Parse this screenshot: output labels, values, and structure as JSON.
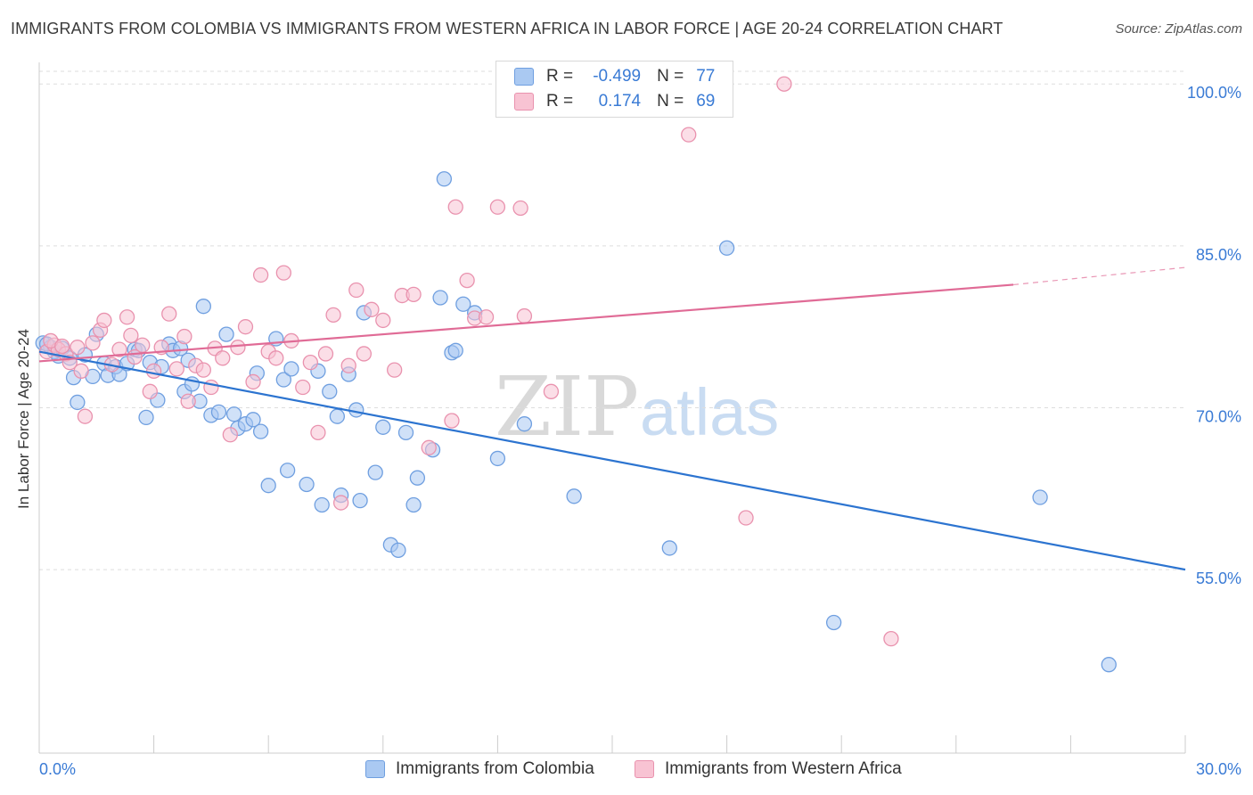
{
  "title": "IMMIGRANTS FROM COLOMBIA VS IMMIGRANTS FROM WESTERN AFRICA IN LABOR FORCE | AGE 20-24 CORRELATION CHART",
  "source": "Source: ZipAtlas.com",
  "watermark": {
    "zip": "ZIP",
    "atlas": "atlas"
  },
  "legend": {
    "rows": [
      {
        "r_label": "R =",
        "r_value": "-0.499",
        "n_label": "N =",
        "n_value": "77"
      },
      {
        "r_label": "R =",
        "r_value": "0.174",
        "n_label": "N =",
        "n_value": "69"
      }
    ]
  },
  "chart_data": {
    "type": "scatter",
    "title": "IMMIGRANTS FROM COLOMBIA VS IMMIGRANTS FROM WESTERN AFRICA IN LABOR FORCE | AGE 20-24 CORRELATION CHART",
    "xlabel": "",
    "ylabel": "In Labor Force | Age 20-24",
    "xlim": [
      0,
      30
    ],
    "ylim": [
      38,
      102
    ],
    "x_tick_labels": [
      "0.0%",
      "30.0%"
    ],
    "y_ticks": [
      55,
      70,
      85,
      100
    ],
    "y_tick_labels": [
      "55.0%",
      "70.0%",
      "85.0%",
      "100.0%"
    ],
    "grid": true,
    "legend_position": "bottom",
    "series": [
      {
        "name": "Immigrants from Colombia",
        "color": "#7aaee8",
        "line_color": "#2c74d0",
        "trend": {
          "x": [
            0,
            30
          ],
          "y": [
            75.2,
            55.0
          ]
        },
        "points": [
          [
            0.1,
            76.0
          ],
          [
            0.3,
            75.6
          ],
          [
            0.4,
            75.2
          ],
          [
            0.5,
            74.8
          ],
          [
            0.6,
            75.5
          ],
          [
            0.8,
            74.6
          ],
          [
            0.9,
            72.8
          ],
          [
            1.0,
            70.5
          ],
          [
            1.2,
            74.9
          ],
          [
            1.4,
            72.9
          ],
          [
            1.5,
            76.8
          ],
          [
            1.7,
            74.1
          ],
          [
            1.8,
            73.0
          ],
          [
            2.0,
            73.8
          ],
          [
            2.1,
            73.1
          ],
          [
            2.3,
            74.1
          ],
          [
            2.5,
            75.4
          ],
          [
            2.6,
            75.3
          ],
          [
            2.8,
            69.1
          ],
          [
            2.9,
            74.2
          ],
          [
            3.1,
            70.7
          ],
          [
            3.2,
            73.8
          ],
          [
            3.4,
            75.9
          ],
          [
            3.5,
            75.3
          ],
          [
            3.7,
            75.5
          ],
          [
            3.8,
            71.5
          ],
          [
            3.9,
            74.4
          ],
          [
            4.0,
            72.2
          ],
          [
            4.2,
            70.6
          ],
          [
            4.3,
            79.4
          ],
          [
            4.5,
            69.3
          ],
          [
            4.7,
            69.6
          ],
          [
            4.9,
            76.8
          ],
          [
            5.1,
            69.4
          ],
          [
            5.2,
            68.1
          ],
          [
            5.4,
            68.5
          ],
          [
            5.6,
            68.9
          ],
          [
            5.7,
            73.2
          ],
          [
            5.8,
            67.8
          ],
          [
            6.0,
            62.8
          ],
          [
            6.2,
            76.4
          ],
          [
            6.4,
            72.6
          ],
          [
            6.5,
            64.2
          ],
          [
            6.6,
            73.6
          ],
          [
            7.0,
            62.9
          ],
          [
            7.3,
            73.4
          ],
          [
            7.4,
            61.0
          ],
          [
            7.6,
            71.5
          ],
          [
            7.8,
            69.2
          ],
          [
            7.9,
            61.9
          ],
          [
            8.1,
            73.1
          ],
          [
            8.3,
            69.8
          ],
          [
            8.4,
            61.4
          ],
          [
            8.5,
            78.8
          ],
          [
            8.8,
            64.0
          ],
          [
            9.0,
            68.2
          ],
          [
            9.2,
            57.3
          ],
          [
            9.4,
            56.8
          ],
          [
            9.6,
            67.7
          ],
          [
            9.8,
            61.0
          ],
          [
            9.9,
            63.5
          ],
          [
            10.3,
            66.1
          ],
          [
            10.5,
            80.2
          ],
          [
            10.6,
            91.2
          ],
          [
            10.8,
            75.1
          ],
          [
            10.9,
            75.3
          ],
          [
            11.1,
            79.6
          ],
          [
            11.4,
            78.8
          ],
          [
            12.0,
            65.3
          ],
          [
            12.7,
            68.5
          ],
          [
            14.0,
            61.8
          ],
          [
            16.5,
            57.0
          ],
          [
            18.0,
            84.8
          ],
          [
            20.8,
            50.1
          ],
          [
            26.2,
            61.7
          ],
          [
            28.0,
            46.2
          ],
          [
            0.2,
            75.9
          ]
        ]
      },
      {
        "name": "Immigrants from Western Africa",
        "color": "#f4a7bf",
        "line_color": "#e06b96",
        "trend": {
          "x": [
            0,
            25.5
          ],
          "y": [
            74.3,
            81.4
          ]
        },
        "trend_dashed": {
          "x": [
            25.5,
            30
          ],
          "y": [
            81.4,
            83.0
          ]
        },
        "points": [
          [
            0.2,
            75.2
          ],
          [
            0.4,
            75.8
          ],
          [
            0.5,
            75.4
          ],
          [
            0.7,
            75.0
          ],
          [
            0.8,
            74.2
          ],
          [
            1.0,
            75.6
          ],
          [
            1.1,
            73.4
          ],
          [
            1.2,
            69.2
          ],
          [
            1.4,
            76.0
          ],
          [
            1.6,
            77.2
          ],
          [
            1.7,
            78.1
          ],
          [
            1.9,
            74.0
          ],
          [
            2.1,
            75.4
          ],
          [
            2.3,
            78.4
          ],
          [
            2.4,
            76.7
          ],
          [
            2.5,
            74.7
          ],
          [
            2.7,
            75.8
          ],
          [
            2.9,
            71.5
          ],
          [
            3.0,
            73.4
          ],
          [
            3.2,
            75.6
          ],
          [
            3.4,
            78.7
          ],
          [
            3.6,
            73.6
          ],
          [
            3.8,
            76.6
          ],
          [
            3.9,
            70.6
          ],
          [
            4.1,
            73.9
          ],
          [
            4.3,
            73.5
          ],
          [
            4.5,
            71.9
          ],
          [
            4.6,
            75.5
          ],
          [
            4.8,
            74.6
          ],
          [
            5.0,
            67.5
          ],
          [
            5.2,
            75.6
          ],
          [
            5.4,
            77.5
          ],
          [
            5.6,
            72.4
          ],
          [
            5.8,
            82.3
          ],
          [
            6.0,
            75.2
          ],
          [
            6.2,
            74.6
          ],
          [
            6.4,
            82.5
          ],
          [
            6.6,
            76.2
          ],
          [
            6.9,
            71.9
          ],
          [
            7.1,
            74.2
          ],
          [
            7.3,
            67.7
          ],
          [
            7.5,
            75.0
          ],
          [
            7.7,
            78.6
          ],
          [
            7.9,
            61.2
          ],
          [
            8.1,
            73.9
          ],
          [
            8.3,
            80.9
          ],
          [
            8.5,
            75.0
          ],
          [
            8.7,
            79.1
          ],
          [
            9.0,
            78.1
          ],
          [
            9.3,
            73.5
          ],
          [
            9.5,
            80.4
          ],
          [
            9.8,
            80.5
          ],
          [
            10.2,
            66.3
          ],
          [
            10.8,
            68.8
          ],
          [
            10.9,
            88.6
          ],
          [
            11.2,
            81.8
          ],
          [
            11.4,
            78.3
          ],
          [
            11.7,
            78.4
          ],
          [
            12.0,
            88.6
          ],
          [
            12.6,
            88.5
          ],
          [
            12.7,
            78.5
          ],
          [
            13.4,
            71.5
          ],
          [
            15.2,
            100.0
          ],
          [
            17.0,
            95.3
          ],
          [
            18.5,
            59.8
          ],
          [
            19.5,
            100.0
          ],
          [
            22.3,
            48.6
          ],
          [
            0.3,
            76.2
          ],
          [
            0.6,
            75.7
          ]
        ]
      }
    ]
  },
  "colors": {
    "colombia_fill": "#aac9f2",
    "colombia_stroke": "#6f9fe0",
    "wafrica_fill": "#f8c3d3",
    "wafrica_stroke": "#e992ae",
    "axis_label_blue": "#3a7bd5",
    "grid": "#dddddd"
  }
}
